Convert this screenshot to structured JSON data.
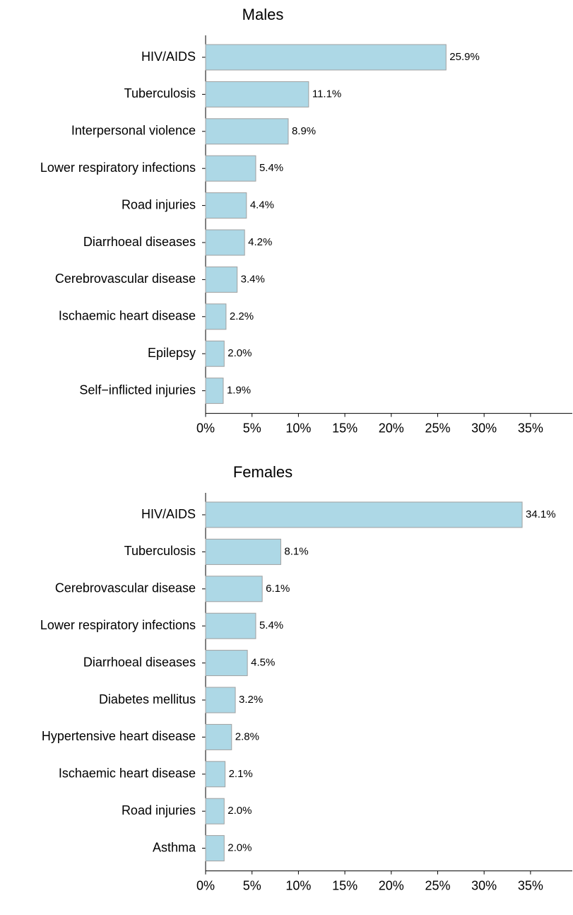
{
  "chart_data": [
    {
      "type": "barh",
      "title": "Males",
      "color": "#add8e6",
      "categories": [
        "HIV/AIDS",
        "Tuberculosis",
        "Interpersonal violence",
        "Lower respiratory infections",
        "Road injuries",
        "Diarrhoeal diseases",
        "Cerebrovascular disease",
        "Ischaemic heart disease",
        "Epilepsy",
        "Self−inflicted injuries"
      ],
      "values": [
        25.9,
        11.1,
        8.9,
        5.4,
        4.4,
        4.2,
        3.4,
        2.2,
        2.0,
        1.9
      ],
      "value_labels": [
        "25.9%",
        "11.1%",
        "8.9%",
        "5.4%",
        "4.4%",
        "4.2%",
        "3.4%",
        "2.2%",
        "2.0%",
        "1.9%"
      ],
      "xlim": [
        0,
        39.5
      ],
      "xticks": [
        {
          "value": 0,
          "label": "0%"
        },
        {
          "value": 5,
          "label": "5%"
        },
        {
          "value": 10,
          "label": "10%"
        },
        {
          "value": 15,
          "label": "15%"
        },
        {
          "value": 20,
          "label": "20%"
        },
        {
          "value": 25,
          "label": "25%"
        },
        {
          "value": 30,
          "label": "30%"
        },
        {
          "value": 35,
          "label": "35%"
        }
      ]
    },
    {
      "type": "barh",
      "title": "Females",
      "color": "#add8e6",
      "categories": [
        "HIV/AIDS",
        "Tuberculosis",
        "Cerebrovascular disease",
        "Lower respiratory infections",
        "Diarrhoeal diseases",
        "Diabetes mellitus",
        "Hypertensive heart disease",
        "Ischaemic heart disease",
        "Road injuries",
        "Asthma"
      ],
      "values": [
        34.1,
        8.1,
        6.1,
        5.4,
        4.5,
        3.2,
        2.8,
        2.1,
        2.0,
        2.0
      ],
      "value_labels": [
        "34.1%",
        "8.1%",
        "6.1%",
        "5.4%",
        "4.5%",
        "3.2%",
        "2.8%",
        "2.1%",
        "2.0%",
        "2.0%"
      ],
      "xlim": [
        0,
        39.5
      ],
      "xticks": [
        {
          "value": 0,
          "label": "0%"
        },
        {
          "value": 5,
          "label": "5%"
        },
        {
          "value": 10,
          "label": "10%"
        },
        {
          "value": 15,
          "label": "15%"
        },
        {
          "value": 20,
          "label": "20%"
        },
        {
          "value": 25,
          "label": "25%"
        },
        {
          "value": 30,
          "label": "30%"
        },
        {
          "value": 35,
          "label": "35%"
        }
      ]
    }
  ]
}
